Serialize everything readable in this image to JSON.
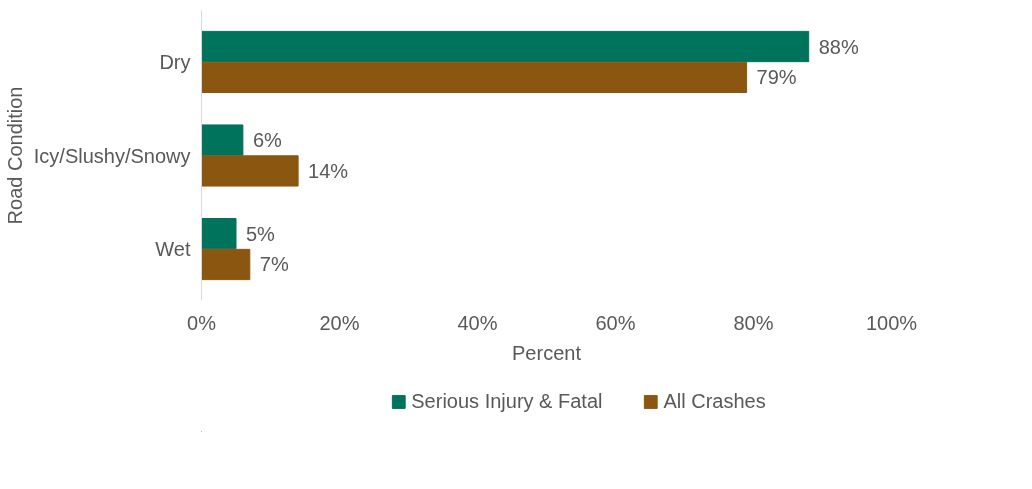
{
  "chart_data": {
    "type": "bar",
    "orientation": "horizontal",
    "xlabel": "Percent",
    "ylabel": "Road Condition",
    "categories": [
      "Dry",
      "Icy/Slushy/Snowy",
      "Wet"
    ],
    "series": [
      {
        "name": "Serious Injury & Fatal",
        "color": "#00735c",
        "values": [
          88,
          6,
          5
        ],
        "value_labels": [
          "88%",
          "6%",
          "5%"
        ]
      },
      {
        "name": "All Crashes",
        "color": "#8b560f",
        "values": [
          79,
          14,
          7
        ],
        "value_labels": [
          "79%",
          "14%",
          "7%"
        ]
      }
    ],
    "xlim": [
      0,
      100
    ],
    "xticks": [
      {
        "value": 0,
        "label": "0%"
      },
      {
        "value": 20,
        "label": "20%"
      },
      {
        "value": 40,
        "label": "40%"
      },
      {
        "value": 60,
        "label": "60%"
      },
      {
        "value": 80,
        "label": "80%"
      },
      {
        "value": 100,
        "label": "100%"
      }
    ],
    "grid": false,
    "legend": "bottom"
  }
}
